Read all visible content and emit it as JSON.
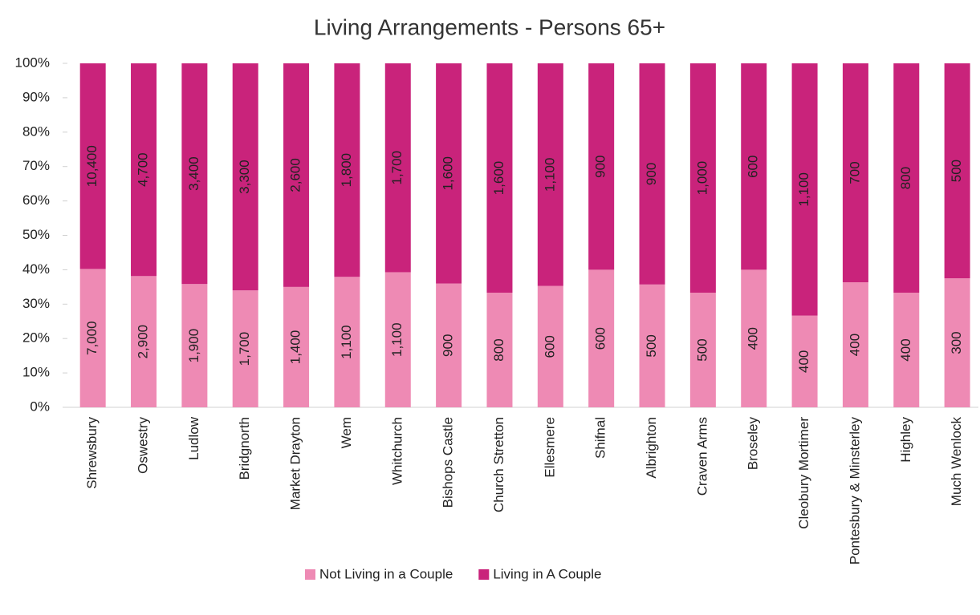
{
  "chart_data": {
    "type": "bar",
    "stacking": "percent",
    "title": "Living Arrangements - Persons 65+",
    "categories": [
      "Shrewsbury",
      "Oswestry",
      "Ludlow",
      "Bridgnorth",
      "Market Drayton",
      "Wem",
      "Whitchurch",
      "Bishops Castle",
      "Church Stretton",
      "Ellesmere",
      "Shifnal",
      "Albrighton",
      "Craven Arms",
      "Broseley",
      "Cleobury Mortimer",
      "Pontesbury & Minsterley",
      "Highley",
      "Much Wenlock"
    ],
    "series": [
      {
        "name": "Not Living in a Couple",
        "color": "#ee8ab4",
        "values": [
          7000,
          2900,
          1900,
          1700,
          1400,
          1100,
          1100,
          900,
          800,
          600,
          600,
          500,
          500,
          400,
          400,
          400,
          400,
          300
        ],
        "value_labels": [
          "7,000",
          "2,900",
          "1,900",
          "1,700",
          "1,400",
          "1,100",
          "1,100",
          "900",
          "800",
          "600",
          "600",
          "500",
          "500",
          "400",
          "400",
          "400",
          "400",
          "300"
        ]
      },
      {
        "name": "Living in A Couple",
        "color": "#c9237b",
        "values": [
          10400,
          4700,
          3400,
          3300,
          2600,
          1800,
          1700,
          1600,
          1600,
          1100,
          900,
          900,
          1000,
          600,
          1100,
          700,
          800,
          500
        ],
        "value_labels": [
          "10,400",
          "4,700",
          "3,400",
          "3,300",
          "2,600",
          "1,800",
          "1,700",
          "1,600",
          "1,600",
          "1,100",
          "900",
          "900",
          "1,000",
          "600",
          "1,100",
          "700",
          "800",
          "500"
        ]
      }
    ],
    "ylim": [
      0,
      100
    ],
    "yticks": [
      {
        "value": 0,
        "label": "0%"
      },
      {
        "value": 10,
        "label": "10%"
      },
      {
        "value": 20,
        "label": "20%"
      },
      {
        "value": 30,
        "label": "30%"
      },
      {
        "value": 40,
        "label": "40%"
      },
      {
        "value": 50,
        "label": "50%"
      },
      {
        "value": 60,
        "label": "60%"
      },
      {
        "value": 70,
        "label": "70%"
      },
      {
        "value": 80,
        "label": "80%"
      },
      {
        "value": 90,
        "label": "90%"
      },
      {
        "value": 100,
        "label": "100%"
      }
    ],
    "legend": "bottom"
  }
}
